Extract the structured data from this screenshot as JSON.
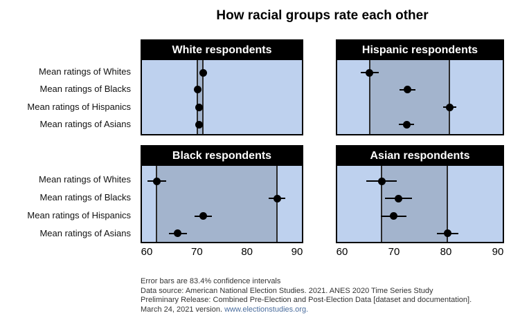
{
  "title": "How racial groups rate each other",
  "colors": {
    "panel_bg": "#bed1ee",
    "band_fill": "#a3b4cd",
    "edge_line": "#2a2a2a",
    "marker": "#000000",
    "header_bg": "#000000",
    "header_text": "#ffffff",
    "link": "#4a6d9e"
  },
  "footnote": {
    "lines": [
      "Error bars are 83.4% confidence intervals",
      "Data source: American National Election Studies. 2021. ANES 2020 Time Series Study",
      "Preliminary Release: Combined Pre-Election and Post-Election Data [dataset and documentation].",
      "March 24, 2021 version. "
    ],
    "link_text": "www.electionstudies.org."
  },
  "chart_data": {
    "type": "scatter",
    "title": "How racial groups rate each other",
    "x_axis": {
      "min": 60,
      "max": 90,
      "ticks": [
        60,
        70,
        80,
        90
      ]
    },
    "row_labels": [
      "Mean ratings of Whites",
      "Mean ratings of Blacks",
      "Mean ratings of Hispanics",
      "Mean ratings of Asians"
    ],
    "panels": [
      {
        "label": "White respondents",
        "values": [
          71.2,
          70.1,
          70.5,
          70.4
        ],
        "ci_half_width": [
          0.5,
          0.5,
          0.5,
          0.5
        ]
      },
      {
        "label": "Hispanic respondents",
        "values": [
          65.3,
          72.6,
          80.7,
          72.4
        ],
        "ci_half_width": [
          1.7,
          1.5,
          1.3,
          1.5
        ]
      },
      {
        "label": "Black respondents",
        "values": [
          62.0,
          86.0,
          71.3,
          66.2
        ],
        "ci_half_width": [
          1.9,
          1.7,
          1.7,
          1.8
        ]
      },
      {
        "label": "Asian respondents",
        "values": [
          67.6,
          70.8,
          69.9,
          80.3
        ],
        "ci_half_width": [
          2.9,
          2.6,
          2.5,
          2.1
        ]
      }
    ],
    "band_meaning": "shaded band spans from the minimum to the maximum mean rating within each panel",
    "error_bars": "83.4% confidence intervals",
    "grid": false,
    "legend": "none"
  }
}
